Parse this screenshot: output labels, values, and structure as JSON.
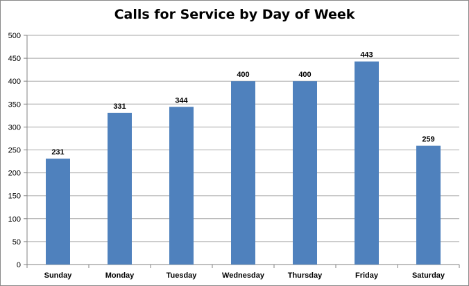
{
  "chart_data": {
    "type": "bar",
    "title": "Calls for Service by Day of Week",
    "categories": [
      "Sunday",
      "Monday",
      "Tuesday",
      "Wednesday",
      "Thursday",
      "Friday",
      "Saturday"
    ],
    "values": [
      231,
      331,
      344,
      400,
      400,
      443,
      259
    ],
    "ylim": [
      0,
      500
    ],
    "yticks": [
      0,
      50,
      100,
      150,
      200,
      250,
      300,
      350,
      400,
      450,
      500
    ],
    "grid": true,
    "legend": false,
    "data_labels": true,
    "bar_color": "#4F81BD",
    "grid_color": "#A6A6A6"
  }
}
